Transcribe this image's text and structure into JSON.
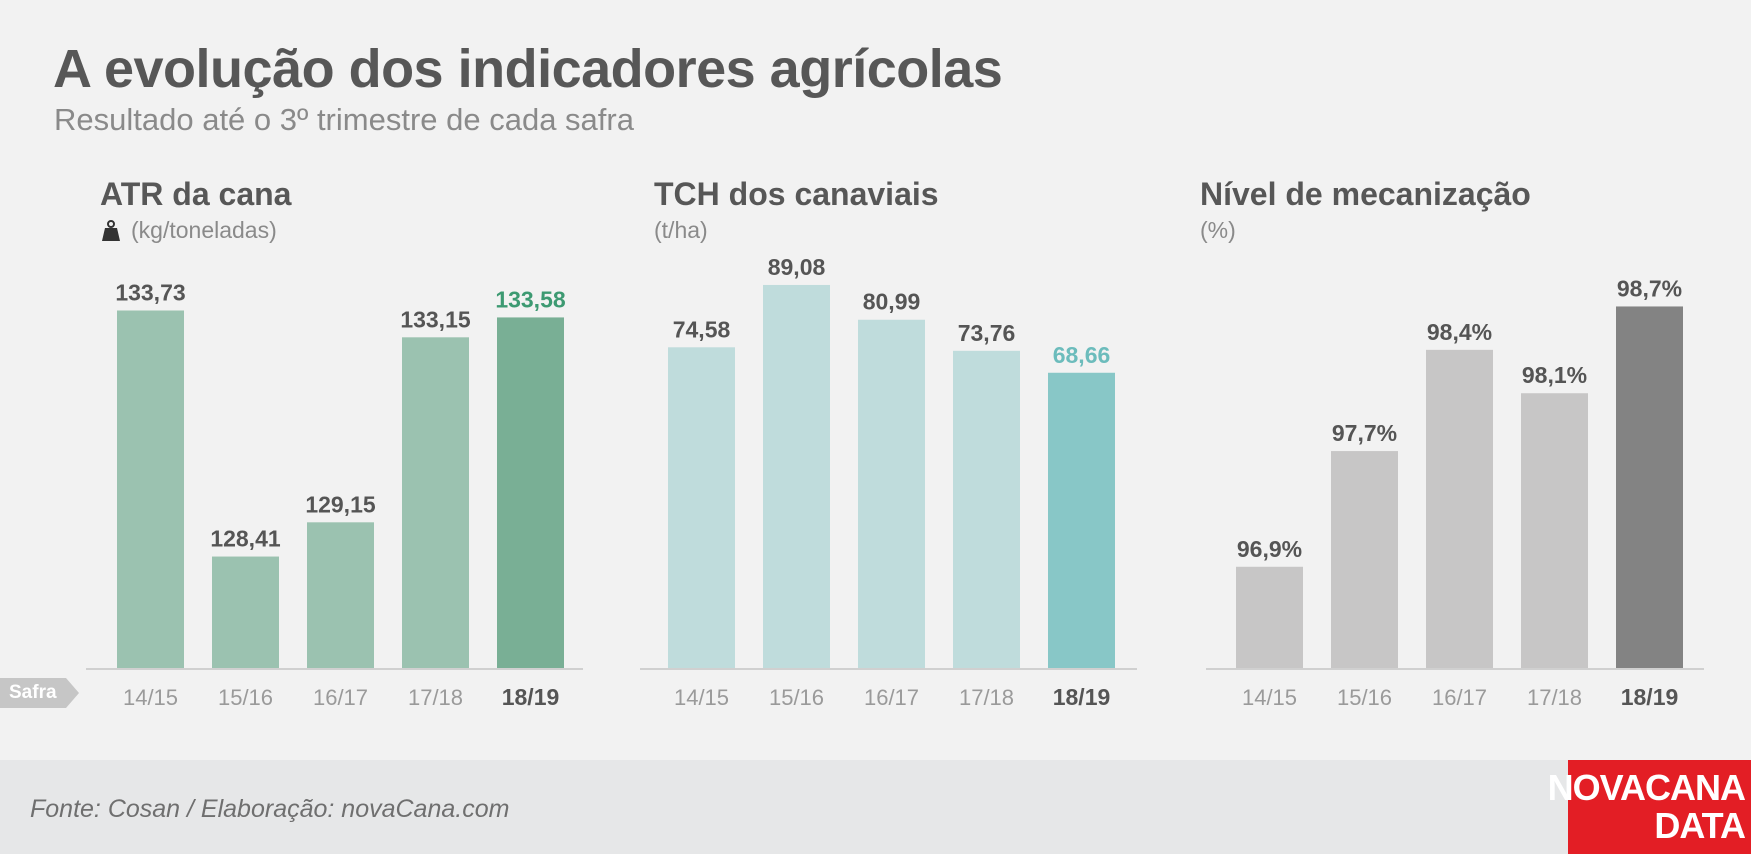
{
  "title": "A evolução dos indicadores agrícolas",
  "subtitle": "Resultado até o 3º trimestre de cada safra",
  "safra_label": "Safra",
  "source": "Fonte: Cosan / Elaboração: novaCana.com",
  "logo": {
    "line1": "NOVACANA",
    "line2": "DATA"
  },
  "colors": {
    "atr_bar": "#9bc2b0",
    "atr_highlight": "#79af95",
    "atr_highlight_label": "#3d9a72",
    "tch_bar": "#bfdcdc",
    "tch_highlight": "#88c7c7",
    "tch_highlight_label": "#6cbcbc",
    "mec_bar": "#c7c6c6",
    "mec_highlight": "#838383",
    "label": "#555555",
    "tick": "#9a9a9a",
    "tick_highlight": "#555555",
    "axis": "#d0d0d0",
    "logo": "#e31e25"
  },
  "chart_data": [
    {
      "type": "bar",
      "title": "ATR da cana",
      "ylabel": "(kg/toneladas)",
      "unit_icon": "weight-icon",
      "categories": [
        "14/15",
        "15/16",
        "16/17",
        "17/18",
        "18/19"
      ],
      "values": [
        133.73,
        128.41,
        129.15,
        133.15,
        133.58
      ],
      "value_labels": [
        "133,73",
        "128,41",
        "129,15",
        "133,15",
        "133,58"
      ],
      "highlight_index": 4,
      "ylim": [
        126.0,
        134.0
      ]
    },
    {
      "type": "bar",
      "title": "TCH dos canaviais",
      "ylabel": "(t/ha)",
      "categories": [
        "14/15",
        "15/16",
        "16/17",
        "17/18",
        "18/19"
      ],
      "values": [
        74.58,
        89.08,
        80.99,
        73.76,
        68.66
      ],
      "value_labels": [
        "74,58",
        "89,08",
        "80,99",
        "73,76",
        "68,66"
      ],
      "highlight_index": 4,
      "ylim": [
        0,
        100
      ]
    },
    {
      "type": "bar",
      "title": "Nível de mecanização",
      "ylabel": "(%)",
      "categories": [
        "14/15",
        "15/16",
        "16/17",
        "17/18",
        "18/19"
      ],
      "values": [
        96.9,
        97.7,
        98.4,
        98.1,
        98.7
      ],
      "value_labels": [
        "96,9%",
        "97,7%",
        "98,4%",
        "98,1%",
        "98,7%"
      ],
      "highlight_index": 4,
      "ylim": [
        96.2,
        98.8
      ]
    }
  ]
}
